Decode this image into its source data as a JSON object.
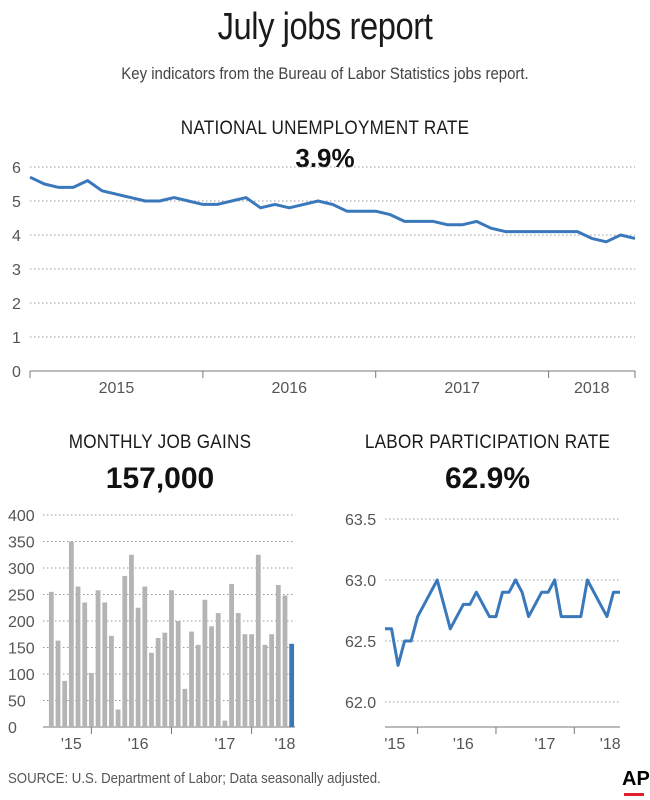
{
  "header": {
    "title": "July jobs report",
    "subtitle": "Key indicators from the Bureau of Labor Statistics jobs report."
  },
  "unemployment": {
    "heading": "NATIONAL UNEMPLOYMENT RATE",
    "value": "3.9%"
  },
  "job_gains": {
    "heading": "MONTHLY JOB GAINS",
    "value": "157,000"
  },
  "participation": {
    "heading": "LABOR PARTICIPATION RATE",
    "value": "62.9%"
  },
  "footer": {
    "source": "SOURCE: U.S. Department of Labor; Data seasonally adjusted.",
    "logo": "AP"
  },
  "colors": {
    "line": "#3a78bc",
    "bar": "#b4b4b4",
    "bar_highlight": "#3a78bc",
    "grid": "#9a9a9a"
  },
  "chart_data": [
    {
      "type": "line",
      "title": "NATIONAL UNEMPLOYMENT RATE",
      "ylim": [
        0,
        6
      ],
      "yticks": [
        "0",
        "1",
        "2",
        "3",
        "4",
        "5",
        "6"
      ],
      "xticks": [
        "2015",
        "2016",
        "2017",
        "2018"
      ],
      "start_month": "2015-01",
      "grid": "horizontal dotted",
      "series": [
        {
          "values": [
            5.7,
            5.5,
            5.4,
            5.4,
            5.6,
            5.3,
            5.2,
            5.1,
            5.0,
            5.0,
            5.1,
            5.0,
            4.9,
            4.9,
            5.0,
            5.1,
            4.8,
            4.9,
            4.8,
            4.9,
            5.0,
            4.9,
            4.7,
            4.7,
            4.7,
            4.6,
            4.4,
            4.4,
            4.4,
            4.3,
            4.3,
            4.4,
            4.2,
            4.1,
            4.1,
            4.1,
            4.1,
            4.1,
            4.1,
            3.9,
            3.8,
            4.0,
            3.9
          ]
        }
      ]
    },
    {
      "type": "bar",
      "title": "MONTHLY JOB GAINS",
      "ylim": [
        0,
        400
      ],
      "yticks": [
        "0",
        "50",
        "100",
        "150",
        "200",
        "250",
        "300",
        "350",
        "400"
      ],
      "xticks": [
        "'15",
        "'16",
        "'17",
        "'18"
      ],
      "grid": "horizontal dotted",
      "values": [
        255,
        163,
        87,
        350,
        265,
        235,
        102,
        258,
        235,
        172,
        33,
        285,
        325,
        225,
        265,
        140,
        168,
        178,
        258,
        200,
        72,
        180,
        155,
        240,
        190,
        215,
        12,
        270,
        215,
        175,
        175,
        325,
        155,
        175,
        268,
        248,
        157
      ],
      "highlight_last": true
    },
    {
      "type": "line",
      "title": "LABOR PARTICIPATION RATE",
      "ylim": [
        62.0,
        63.5
      ],
      "yticks": [
        "62.0",
        "62.5",
        "63.0",
        "63.5"
      ],
      "xticks": [
        "'15",
        "'16",
        "'17",
        "'18"
      ],
      "grid": "horizontal dotted",
      "series": [
        {
          "values": [
            62.6,
            62.6,
            62.3,
            62.5,
            62.5,
            62.7,
            62.8,
            62.9,
            63.0,
            62.8,
            62.6,
            62.7,
            62.8,
            62.8,
            62.9,
            62.8,
            62.7,
            62.7,
            62.9,
            62.9,
            63.0,
            62.9,
            62.7,
            62.8,
            62.9,
            62.9,
            63.0,
            62.7,
            62.7,
            62.7,
            62.7,
            63.0,
            62.9,
            62.8,
            62.7,
            62.9,
            62.9
          ]
        }
      ]
    }
  ]
}
